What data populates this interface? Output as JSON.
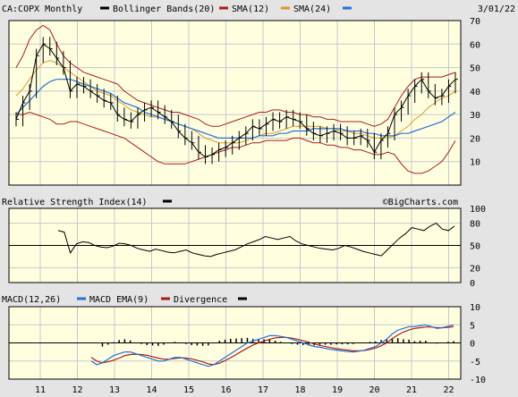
{
  "chart_data": [
    {
      "id": "price",
      "type": "line",
      "title": "CA:COPX Monthly",
      "date": "3/01/22",
      "legend": [
        {
          "label": "Bollinger Bands(20)",
          "color": "#000000"
        },
        {
          "label": "SMA(12)",
          "color": "#b01a1a"
        },
        {
          "label": "SMA(24)",
          "color": "#d99a2b"
        }
      ],
      "legend_trailing_color": "#2472d6",
      "ylim": [
        0,
        70
      ],
      "yticks": [
        "70",
        "60",
        "50",
        "40",
        "30",
        "20",
        "10"
      ],
      "price": [
        28,
        35,
        40,
        55,
        60,
        58,
        54,
        50,
        40,
        43,
        42,
        40,
        38,
        36,
        35,
        30,
        28,
        27,
        30,
        32,
        33,
        31,
        29,
        27,
        23,
        20,
        18,
        14,
        12,
        13,
        15,
        16,
        18,
        20,
        22,
        25,
        24,
        26,
        28,
        27,
        29,
        28,
        27,
        24,
        22,
        21,
        22,
        23,
        22,
        20,
        20,
        21,
        19,
        14,
        19,
        22,
        30,
        33,
        38,
        42,
        45,
        40,
        37,
        38,
        42,
        45
      ],
      "upper_band": [
        50,
        55,
        62,
        66,
        68,
        66,
        60,
        55,
        52,
        50,
        48,
        47,
        46,
        45,
        44,
        43,
        40,
        38,
        36,
        35,
        34,
        33,
        32,
        31,
        31,
        30,
        29,
        28,
        26,
        25,
        25,
        26,
        27,
        28,
        29,
        30,
        31,
        31,
        32,
        32,
        31,
        31,
        30,
        30,
        29,
        29,
        28,
        28,
        27,
        27,
        27,
        27,
        26,
        25,
        26,
        28,
        33,
        38,
        42,
        45,
        46,
        46,
        46,
        46,
        47,
        48
      ],
      "lower_band": [
        30,
        30,
        31,
        30,
        29,
        28,
        26,
        26,
        27,
        27,
        26,
        25,
        24,
        23,
        22,
        21,
        20,
        18,
        16,
        14,
        12,
        10,
        9,
        9,
        9,
        9,
        10,
        11,
        12,
        13,
        14,
        15,
        16,
        16,
        17,
        18,
        18,
        19,
        19,
        19,
        19,
        20,
        20,
        19,
        18,
        18,
        17,
        17,
        16,
        16,
        15,
        15,
        14,
        13,
        13,
        14,
        13,
        9,
        6,
        5,
        5,
        6,
        8,
        10,
        14,
        19
      ],
      "sma12": [
        38,
        41,
        45,
        49,
        52,
        53,
        52,
        50,
        48,
        46,
        44,
        42,
        40,
        39,
        38,
        36,
        34,
        32,
        31,
        30,
        29,
        29,
        28,
        27,
        26,
        25,
        24,
        22,
        20,
        19,
        18,
        18,
        18,
        18,
        19,
        20,
        21,
        22,
        22,
        23,
        24,
        25,
        25,
        25,
        25,
        25,
        24,
        24,
        23,
        23,
        22,
        22,
        21,
        20,
        20,
        20,
        21,
        23,
        25,
        28,
        30,
        33,
        35,
        37,
        38,
        40
      ],
      "sma24": [
        30,
        33,
        36,
        39,
        42,
        44,
        45,
        45,
        45,
        44,
        43,
        42,
        41,
        40,
        39,
        37,
        35,
        34,
        33,
        31,
        30,
        29,
        28,
        27,
        26,
        25,
        24,
        23,
        22,
        21,
        20,
        20,
        20,
        20,
        20,
        20,
        21,
        21,
        21,
        22,
        22,
        23,
        23,
        23,
        24,
        24,
        24,
        24,
        24,
        23,
        23,
        23,
        22,
        22,
        21,
        21,
        21,
        22,
        22,
        23,
        24,
        25,
        26,
        27,
        29,
        31
      ],
      "xlabels": [
        "11",
        "12",
        "13",
        "14",
        "15",
        "16",
        "17",
        "18",
        "19",
        "20",
        "21",
        "22"
      ]
    },
    {
      "id": "rsi",
      "type": "line",
      "title": "Relative Strength Index(14)",
      "watermark": "©BigCharts.com",
      "ylim": [
        0,
        100
      ],
      "yticks": [
        "100",
        "80",
        "50",
        "20",
        "0"
      ],
      "reference_line": 50,
      "values": [
        70,
        68,
        40,
        52,
        55,
        54,
        50,
        48,
        47,
        49,
        53,
        52,
        50,
        46,
        44,
        42,
        45,
        43,
        41,
        40,
        42,
        44,
        40,
        38,
        36,
        35,
        38,
        40,
        42,
        44,
        48,
        52,
        55,
        58,
        62,
        60,
        58,
        60,
        62,
        56,
        52,
        50,
        48,
        46,
        45,
        44,
        46,
        50,
        48,
        45,
        42,
        40,
        38,
        36,
        44,
        52,
        60,
        66,
        74,
        72,
        70,
        76,
        80,
        72,
        70,
        76
      ],
      "line_color": "#000000"
    },
    {
      "id": "macd",
      "type": "line",
      "title": "MACD(12,26)",
      "legend": [
        {
          "label": "MACD EMA(9)",
          "color": "#2472d6"
        },
        {
          "label": "Divergence",
          "color": "#b01a1a"
        }
      ],
      "legend_trailing_color": "#000000",
      "ylim": [
        -10,
        10
      ],
      "yticks": [
        "10",
        "5",
        "0",
        "-5",
        "-10"
      ],
      "macd": [
        -5,
        -6,
        -5.5,
        -4.5,
        -3.5,
        -3,
        -2.5,
        -2.5,
        -3,
        -3.5,
        -4,
        -4.5,
        -5,
        -5,
        -4.5,
        -4,
        -4,
        -4.5,
        -5,
        -5.5,
        -6,
        -6.5,
        -6,
        -5,
        -4,
        -3,
        -2,
        -1,
        0,
        0.5,
        1,
        1.5,
        2,
        2,
        1.8,
        1.5,
        1,
        0.5,
        0,
        -0.5,
        -1,
        -1.2,
        -1.5,
        -1.8,
        -2,
        -2.2,
        -2.4,
        -2.5,
        -2.3,
        -2,
        -1.5,
        -1,
        0,
        1,
        2.5,
        3.5,
        4,
        4.5,
        4.5,
        4.8,
        5,
        4.5,
        4,
        4.2,
        4.6,
        5
      ],
      "signal": [
        -4,
        -5,
        -5.5,
        -5.2,
        -4.8,
        -4.2,
        -3.5,
        -3.2,
        -3.1,
        -3.2,
        -3.4,
        -3.8,
        -4.2,
        -4.5,
        -4.5,
        -4.3,
        -4.1,
        -4.2,
        -4.4,
        -4.8,
        -5.2,
        -5.8,
        -6,
        -5.6,
        -4.9,
        -4.1,
        -3.2,
        -2.3,
        -1.4,
        -0.6,
        0,
        0.5,
        1,
        1.4,
        1.5,
        1.5,
        1.3,
        1,
        0.6,
        0.2,
        -0.3,
        -0.7,
        -1,
        -1.3,
        -1.6,
        -1.8,
        -2,
        -2.2,
        -2.2,
        -2.1,
        -1.8,
        -1.4,
        -0.8,
        0,
        1.2,
        2.2,
        3,
        3.6,
        4,
        4.2,
        4.4,
        4.4,
        4.2,
        4.2,
        4.3,
        4.5
      ],
      "divergence": [
        0,
        0,
        -1,
        -0.5,
        0.2,
        0.8,
        1,
        0.7,
        0.1,
        -0.3,
        -0.6,
        -0.7,
        -0.8,
        -0.5,
        0,
        0.3,
        0.1,
        -0.3,
        -0.6,
        -0.7,
        -0.8,
        -0.7,
        0,
        0.6,
        0.9,
        1.1,
        1.2,
        1.3,
        1.4,
        1.1,
        1,
        1,
        1,
        0.6,
        0.3,
        0,
        -0.3,
        -0.5,
        -0.6,
        -0.7,
        -0.7,
        -0.5,
        -0.5,
        -0.5,
        -0.4,
        -0.4,
        -0.4,
        -0.3,
        -0.1,
        0.1,
        0.3,
        0.4,
        0.8,
        1,
        1.3,
        1.3,
        1,
        0.9,
        0.5,
        0.6,
        0.6,
        0.1,
        -0.2,
        0,
        0.3,
        0.5
      ]
    }
  ],
  "colors": {
    "plot_background": "#ffffe0",
    "page_background": "#e4e4e4",
    "grid": "#c8c8c8",
    "price_line": "#000000",
    "bollinger": "#b01a1a",
    "sma12": "#d99a2b",
    "sma24": "#2472d6"
  }
}
